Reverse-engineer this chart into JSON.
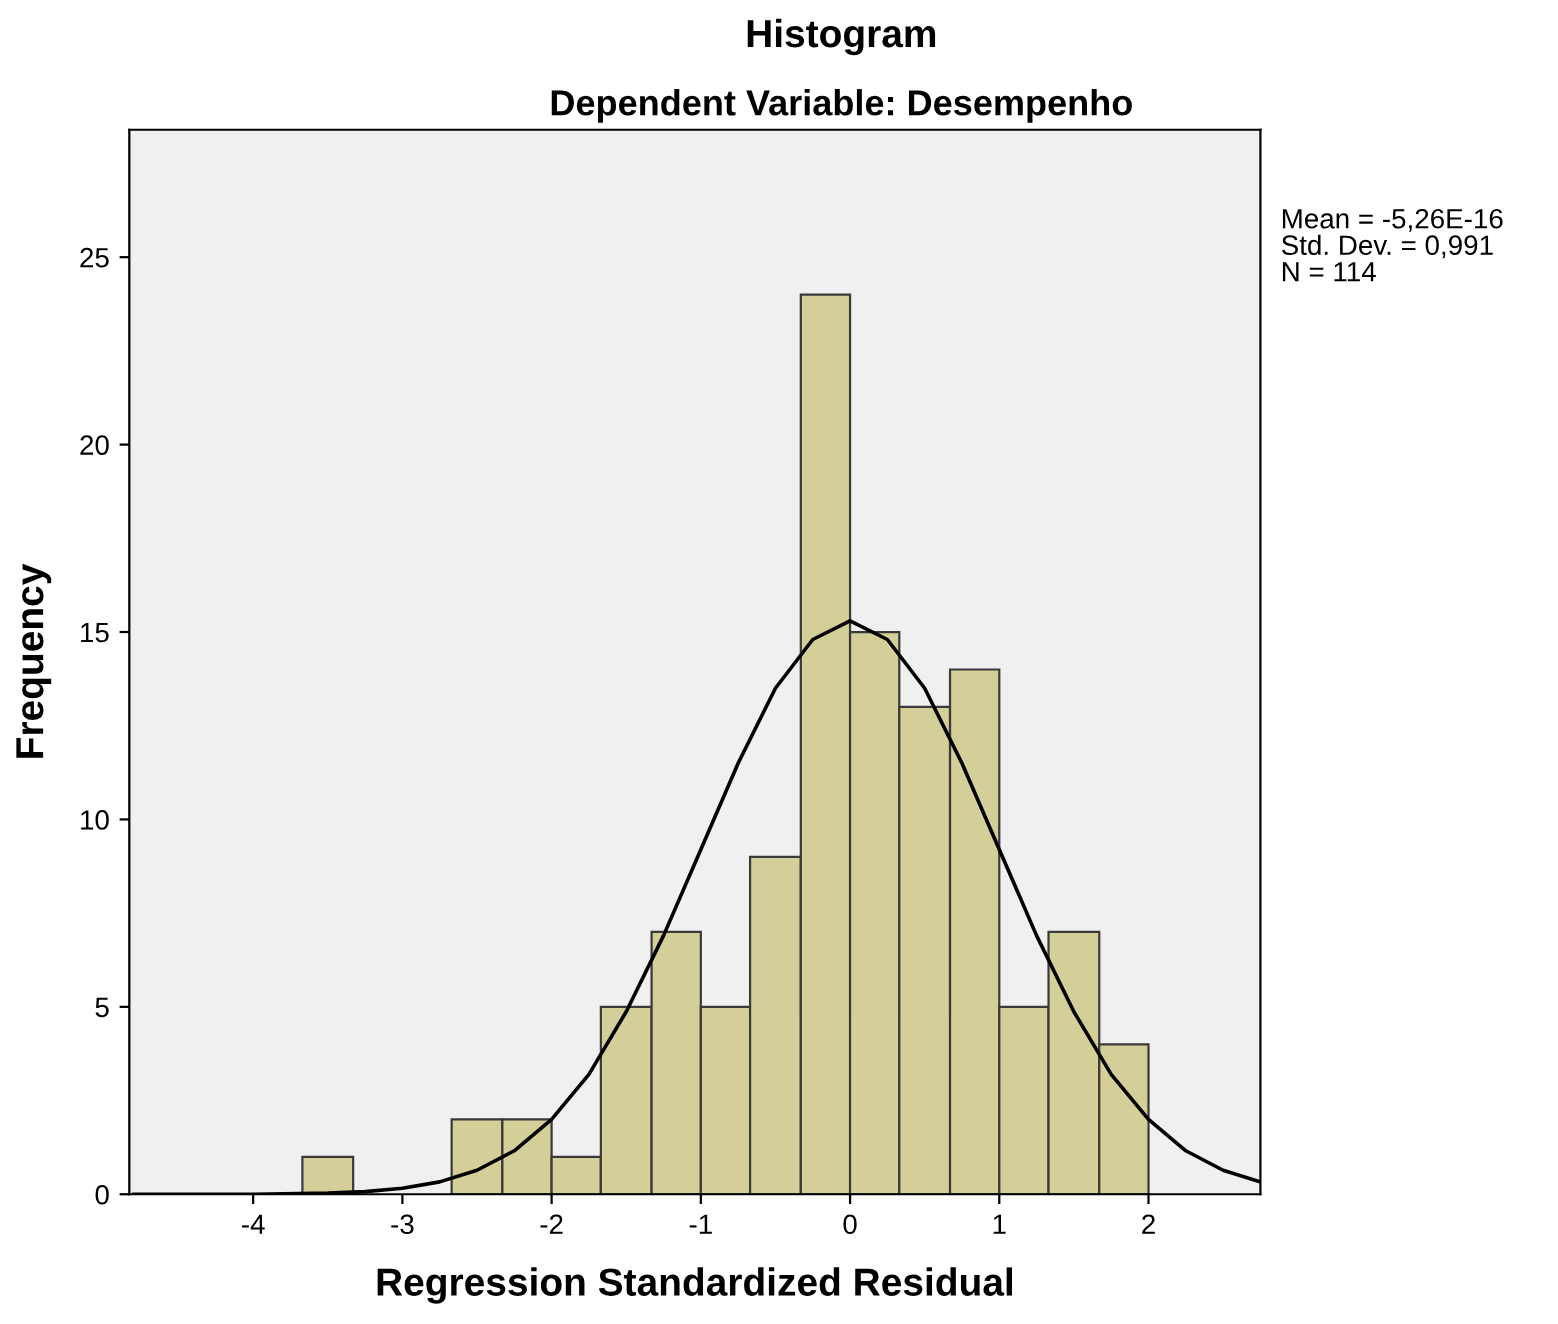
{
  "chart_data": {
    "type": "histogram",
    "title": "Histogram",
    "subtitle": "Dependent Variable: Desempenho",
    "xlabel": "Regression Standardized Residual",
    "ylabel": "Frequency",
    "bins": [
      -3.67,
      -3.33,
      -2.67,
      -2.33,
      -2,
      -1.67,
      -1.33,
      -1,
      -0.67,
      -0.33,
      0,
      0.33,
      0.67,
      1,
      1.33,
      1.67,
      2
    ],
    "values": [
      1,
      0,
      2,
      2,
      1,
      5,
      7,
      5,
      9,
      24,
      15,
      13,
      14,
      5,
      7,
      4
    ],
    "color": "#d4cf98",
    "series": [
      {
        "type": "line",
        "color": "#000000",
        "x": [
          -4.8,
          -4,
          -3.5,
          -3.25,
          -3,
          -2.75,
          -2.5,
          -2.25,
          -2,
          -1.75,
          -1.5,
          -1.25,
          -1,
          -0.75,
          -0.5,
          -0.25,
          0,
          0.25,
          0.5,
          0.75,
          1,
          1.25,
          1.5,
          1.75,
          2,
          2.25,
          2.5,
          2.75
        ],
        "values": [
          0,
          0,
          0.03,
          0.07,
          0.16,
          0.33,
          0.64,
          1.16,
          2,
          3.2,
          4.87,
          6.9,
          9.2,
          11.5,
          13.5,
          14.8,
          15.3,
          14.8,
          13.5,
          11.5,
          9.2,
          6.9,
          4.87,
          3.2,
          2,
          1.16,
          0.64,
          0.33
        ]
      }
    ],
    "xlim": [
      -4.83,
      2.75
    ],
    "ylim": [
      0,
      28.4
    ],
    "xticks": [
      -4,
      -3,
      -2,
      -1,
      0,
      1,
      2
    ],
    "yticks": [
      0,
      5,
      10,
      15,
      20,
      25
    ],
    "grid": false,
    "legend": false,
    "annotations": [
      "Mean = -5,26E-16",
      "Std. Dev. = 0,991",
      "N = 114"
    ]
  }
}
